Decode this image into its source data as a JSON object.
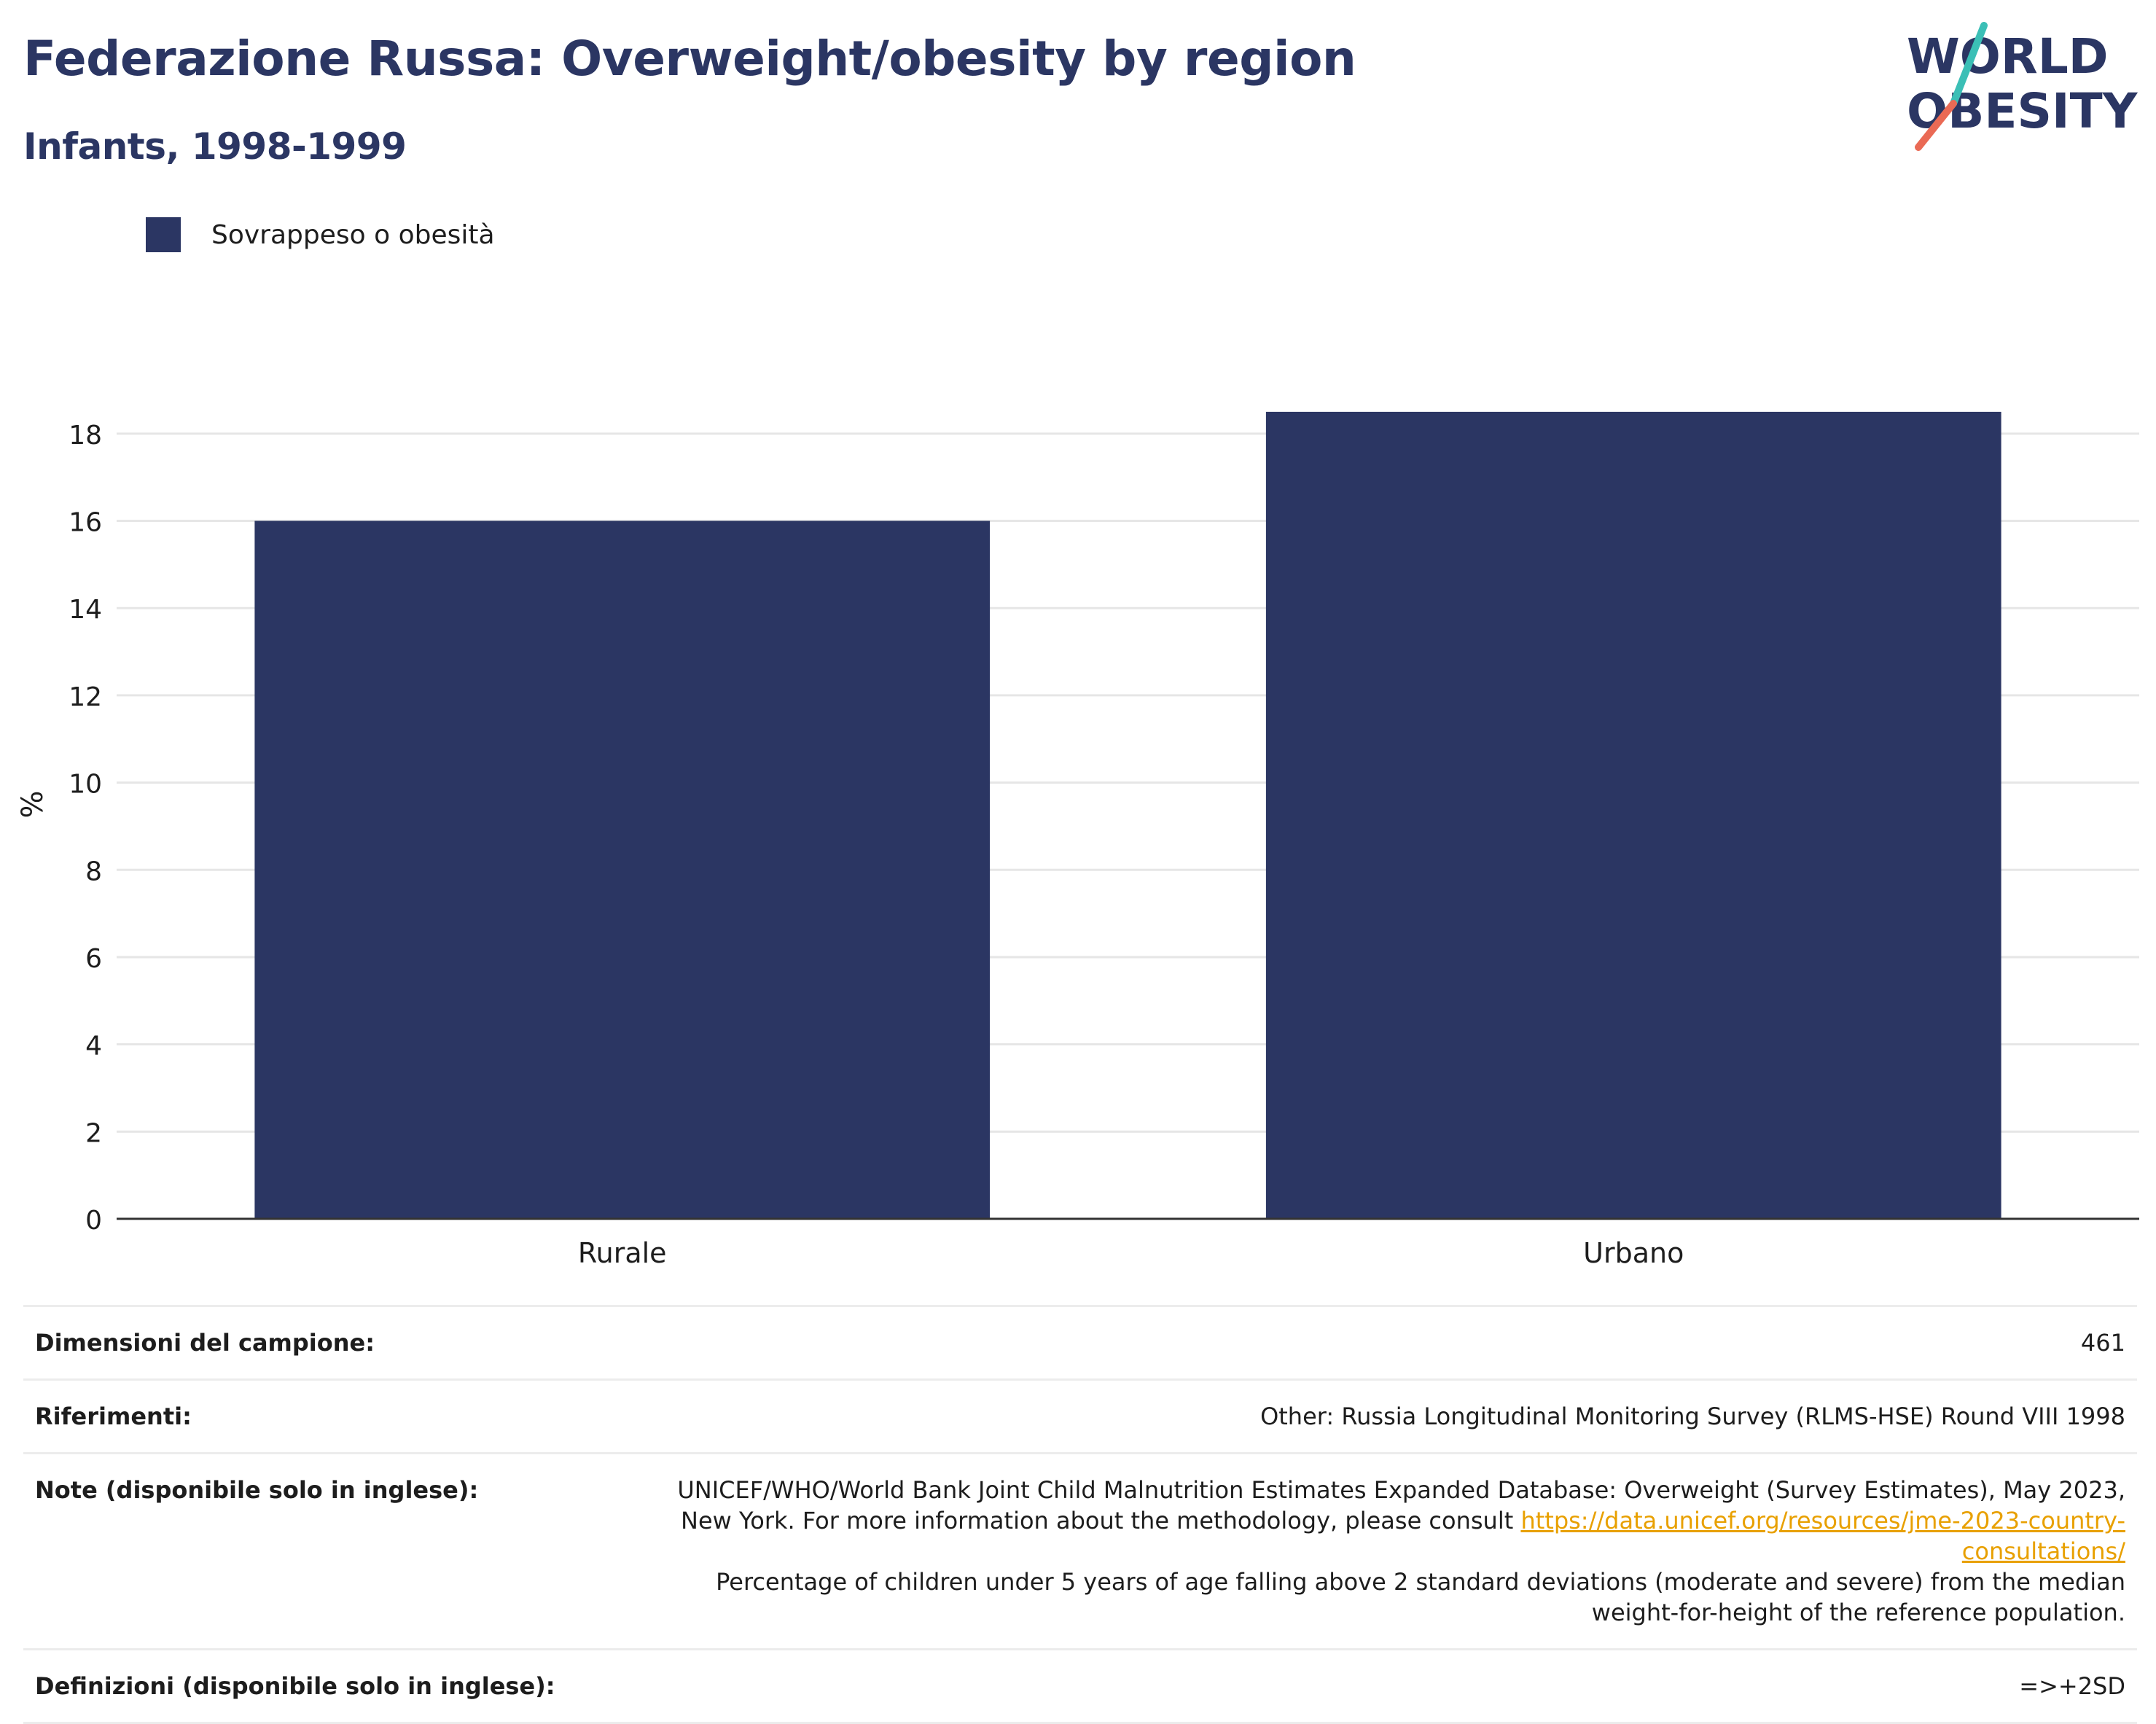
{
  "title": "Federazione Russa: Overweight/obesity by region",
  "subtitle": "Infants, 1998-1999",
  "logo": {
    "line1": "WORLD",
    "line2": "OBESITY"
  },
  "legend": {
    "label": "Sovrappeso o obesità",
    "color": "#2b3663"
  },
  "chart_data": {
    "type": "bar",
    "categories": [
      "Rurale",
      "Urbano"
    ],
    "series": [
      {
        "name": "Sovrappeso o obesità",
        "values": [
          16.0,
          18.5
        ]
      }
    ],
    "ylabel": "%",
    "ylim": [
      0,
      19
    ],
    "yticks": [
      0,
      2,
      4,
      6,
      8,
      10,
      12,
      14,
      16,
      18
    ],
    "grid": true,
    "legend_position": "top-left",
    "bar_color": "#2b3663"
  },
  "info": {
    "sample_label": "Dimensioni del campione:",
    "sample_value": "461",
    "refs_label": "Riferimenti:",
    "refs_value": "Other: Russia Longitudinal Monitoring Survey (RLMS-HSE) Round VIII 1998",
    "notes_label": "Note (disponibile solo in inglese):",
    "notes_text1": "UNICEF/WHO/World Bank Joint Child Malnutrition Estimates Expanded Database: Overweight (Survey Estimates), May 2023, New York. For more information about the methodology, please consult",
    "notes_link": "https://data.unicef.org/resources/jme-2023-country-consultations/",
    "notes_text2": "Percentage of children under 5 years of age falling above 2 standard deviations (moderate and severe) from the median weight-for-height of the reference population.",
    "defs_label": "Definizioni (disponibile solo in inglese):",
    "defs_value": "=>+2SD"
  }
}
